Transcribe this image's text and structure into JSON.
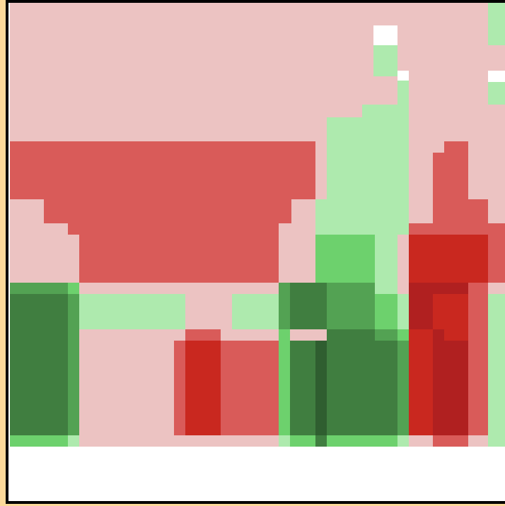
{
  "palette": {
    "pale_red": "#ecc3c2",
    "mid_red": "#d95b59",
    "strong_red": "#c9281f",
    "dark_red": "#b02020",
    "pale_green": "#aeeaae",
    "mid_green": "#6dd16d",
    "green": "#53a253",
    "dark_green": "#407e40",
    "darkest_green": "#2f5e30",
    "white": "#ffffff",
    "frame_border": "#000000",
    "page_background": "#fcd99a"
  }
}
